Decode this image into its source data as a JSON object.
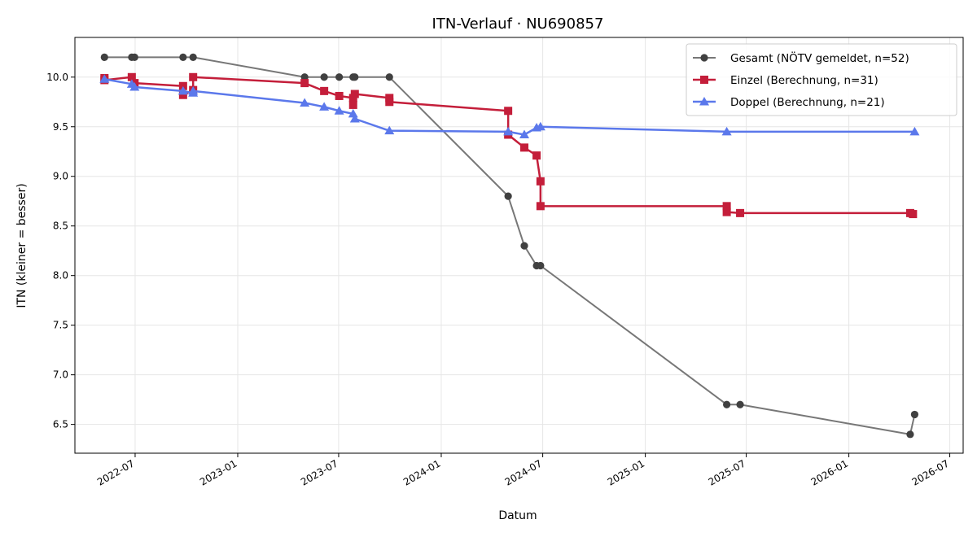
{
  "chart_data": {
    "type": "line",
    "title": "ITN-Verlauf · NU690857",
    "xlabel": "Datum",
    "ylabel": "ITN  (kleiner = besser)",
    "x_type": "date",
    "xlim": [
      "2022-03-15",
      "2026-07-25"
    ],
    "ylim": [
      6.21,
      10.4
    ],
    "x_ticks": [
      "2022-07-01",
      "2023-01-01",
      "2023-07-01",
      "2024-01-01",
      "2024-07-01",
      "2025-01-01",
      "2025-07-01",
      "2026-01-01",
      "2026-07-01"
    ],
    "x_tick_labels": [
      "2022-07",
      "2023-01",
      "2023-07",
      "2024-01",
      "2024-07",
      "2025-01",
      "2025-07",
      "2026-01",
      "2026-07"
    ],
    "y_ticks": [
      6.5,
      7.0,
      7.5,
      8.0,
      8.5,
      9.0,
      9.5,
      10.0
    ],
    "y_tick_labels": [
      "6.5",
      "7.0",
      "7.5",
      "8.0",
      "8.5",
      "9.0",
      "9.5",
      "10.0"
    ],
    "grid": true,
    "legend_position": "top-right",
    "series": [
      {
        "name": "Gesamt (NÖTV gemeldet, n=52)",
        "color": "#777777",
        "marker_color": "#404040",
        "marker": "circle",
        "points": [
          [
            "2022-05-07",
            10.2
          ],
          [
            "2022-06-25",
            10.2
          ],
          [
            "2022-06-30",
            10.2
          ],
          [
            "2022-09-25",
            10.2
          ],
          [
            "2022-10-13",
            10.2
          ],
          [
            "2023-05-01",
            10.0
          ],
          [
            "2023-06-05",
            10.0
          ],
          [
            "2023-07-02",
            10.0
          ],
          [
            "2023-07-27",
            10.0
          ],
          [
            "2023-07-30",
            10.0
          ],
          [
            "2023-09-30",
            10.0
          ],
          [
            "2024-04-30",
            8.8
          ],
          [
            "2024-05-29",
            8.3
          ],
          [
            "2024-06-20",
            8.1
          ],
          [
            "2024-06-27",
            8.1
          ],
          [
            "2025-05-27",
            6.7
          ],
          [
            "2025-06-20",
            6.7
          ],
          [
            "2026-04-21",
            6.4
          ],
          [
            "2026-04-29",
            6.6
          ]
        ]
      },
      {
        "name": "Einzel (Berechnung, n=31)",
        "color": "#c41e3a",
        "marker": "square",
        "points": [
          [
            "2022-05-07",
            9.99
          ],
          [
            "2022-05-07",
            9.97
          ],
          [
            "2022-06-25",
            10.0
          ],
          [
            "2022-06-30",
            9.94
          ],
          [
            "2022-09-25",
            9.91
          ],
          [
            "2022-09-25",
            9.82
          ],
          [
            "2022-10-13",
            9.87
          ],
          [
            "2022-10-13",
            10.0
          ],
          [
            "2023-05-01",
            9.94
          ],
          [
            "2023-06-05",
            9.86
          ],
          [
            "2023-07-02",
            9.81
          ],
          [
            "2023-07-27",
            9.79
          ],
          [
            "2023-07-27",
            9.72
          ],
          [
            "2023-07-30",
            9.83
          ],
          [
            "2023-09-30",
            9.79
          ],
          [
            "2023-09-30",
            9.75
          ],
          [
            "2024-04-30",
            9.66
          ],
          [
            "2024-04-30",
            9.42
          ],
          [
            "2024-05-29",
            9.29
          ],
          [
            "2024-06-20",
            9.21
          ],
          [
            "2024-06-27",
            8.95
          ],
          [
            "2024-06-27",
            8.7
          ],
          [
            "2025-05-27",
            8.7
          ],
          [
            "2025-05-27",
            8.64
          ],
          [
            "2025-06-20",
            8.63
          ],
          [
            "2026-04-21",
            8.63
          ],
          [
            "2026-04-26",
            8.62
          ]
        ]
      },
      {
        "name": "Doppel (Berechnung, n=21)",
        "color": "#5b78eb",
        "marker": "triangle",
        "points": [
          [
            "2022-05-07",
            9.98
          ],
          [
            "2022-06-25",
            9.93
          ],
          [
            "2022-06-30",
            9.9
          ],
          [
            "2022-09-25",
            9.86
          ],
          [
            "2022-10-13",
            9.84
          ],
          [
            "2022-10-13",
            9.86
          ],
          [
            "2023-05-01",
            9.74
          ],
          [
            "2023-06-05",
            9.7
          ],
          [
            "2023-07-02",
            9.66
          ],
          [
            "2023-07-27",
            9.63
          ],
          [
            "2023-07-30",
            9.58
          ],
          [
            "2023-09-30",
            9.46
          ],
          [
            "2024-04-30",
            9.45
          ],
          [
            "2024-05-29",
            9.42
          ],
          [
            "2024-06-20",
            9.49
          ],
          [
            "2024-06-27",
            9.5
          ],
          [
            "2025-05-27",
            9.45
          ],
          [
            "2026-04-29",
            9.45
          ]
        ]
      }
    ]
  }
}
